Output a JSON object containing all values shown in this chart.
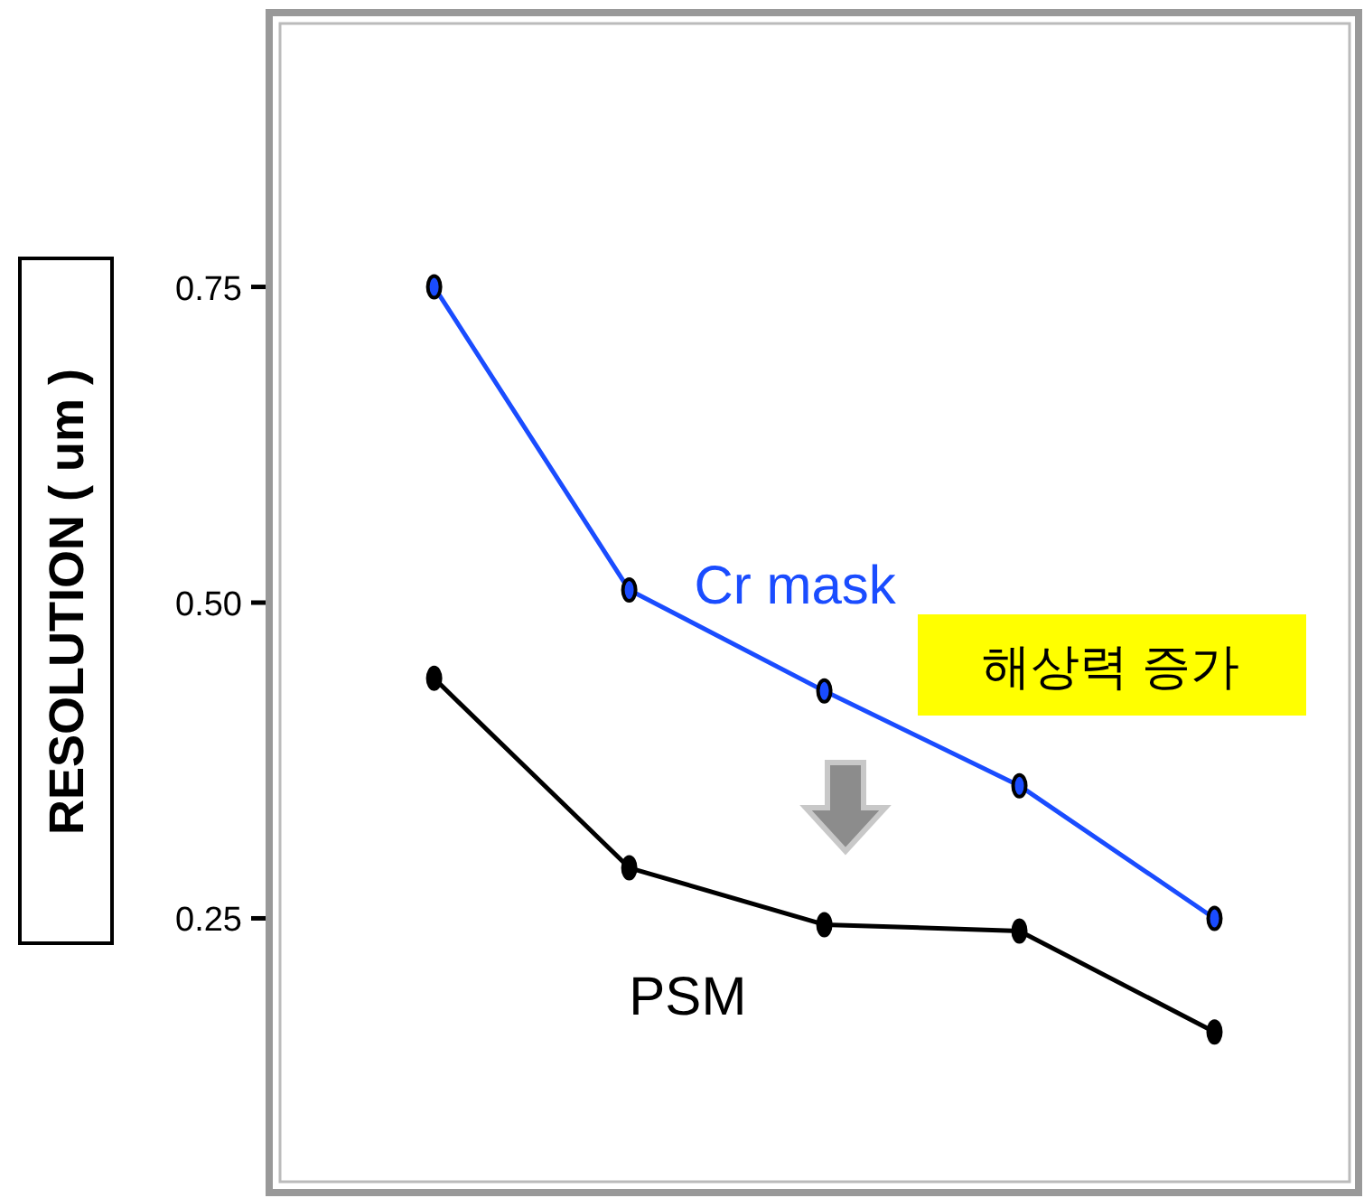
{
  "chart_data": {
    "type": "line",
    "ylabel": "RESOLUTION ( um )",
    "categories": [
      null,
      null,
      null,
      null,
      null
    ],
    "tick_labels": "y",
    "marker": "circle",
    "ylim": [
      0.04,
      0.96
    ],
    "yticks": [
      0.25,
      {
        "value": 0.5,
        "label": "0.50"
      },
      0.75
    ],
    "series": [
      {
        "name": "Cr  mask",
        "color": "#1a4cff",
        "values": [
          0.75,
          0.51,
          0.43,
          0.355,
          0.25
        ]
      },
      {
        "name": "PSM",
        "color": "#000000",
        "values": [
          0.44,
          0.29,
          0.245,
          0.24,
          0.16
        ]
      }
    ],
    "annotations": [
      "해상력  증가"
    ]
  }
}
